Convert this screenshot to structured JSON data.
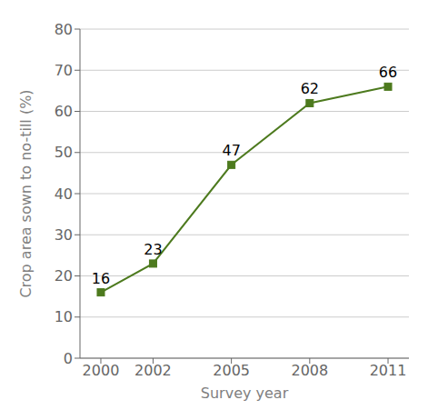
{
  "chart_data": {
    "type": "line",
    "x": [
      2000,
      2002,
      2005,
      2008,
      2011
    ],
    "values": [
      16,
      23,
      47,
      62,
      66
    ],
    "color": "#4d7a1e",
    "marker": "square",
    "xlabel": "Survey year",
    "ylabel": "Crop area sown to no-till (%)",
    "xlim": [
      1999.2,
      2011.8
    ],
    "xticks": [
      2000,
      2002,
      2005,
      2008,
      2011
    ],
    "ylim": [
      0,
      80
    ],
    "yticks": [
      0,
      10,
      20,
      30,
      40,
      50,
      60,
      70,
      80
    ],
    "grid": true,
    "data_labels": true
  }
}
